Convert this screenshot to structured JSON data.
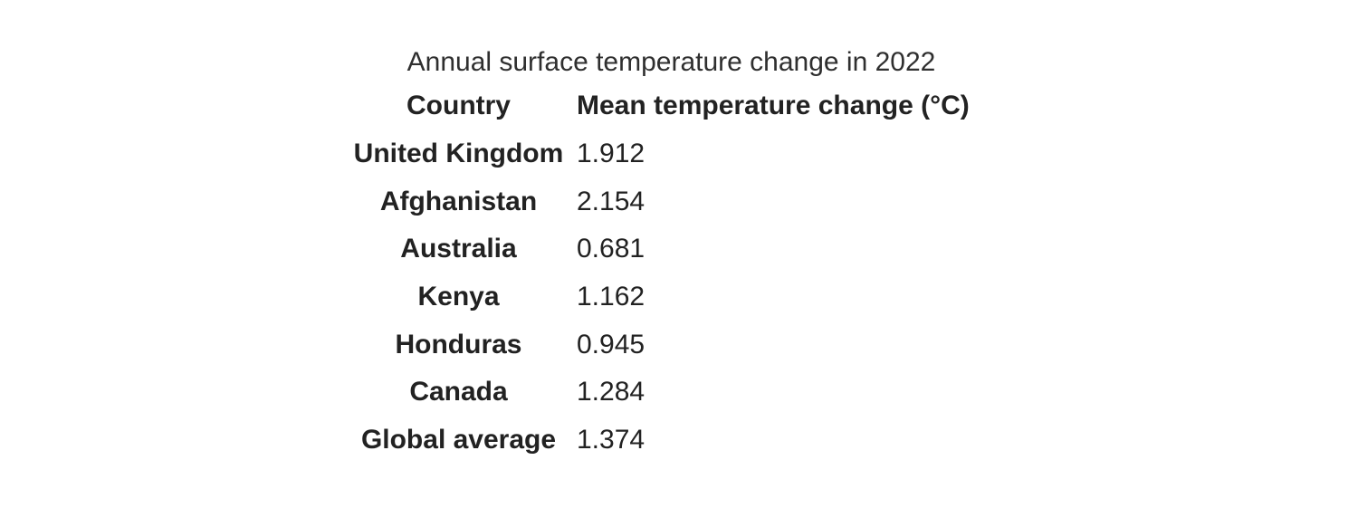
{
  "title": "Annual surface temperature change in 2022",
  "colors": {
    "background": "#ffffff",
    "text": "#222222",
    "title_text": "#2f2f2f"
  },
  "table": {
    "headers": [
      "Country",
      "Mean temperature change (°C)"
    ],
    "rows": [
      {
        "country": "United Kingdom",
        "value": "1.912"
      },
      {
        "country": "Afghanistan",
        "value": "2.154"
      },
      {
        "country": "Australia",
        "value": "0.681"
      },
      {
        "country": "Kenya",
        "value": "1.162"
      },
      {
        "country": "Honduras",
        "value": "0.945"
      },
      {
        "country": "Canada",
        "value": "1.284"
      },
      {
        "country": "Global average",
        "value": "1.374"
      }
    ]
  },
  "chart_data": {
    "type": "table",
    "title": "Annual surface temperature change in 2022",
    "columns": [
      "Country",
      "Mean temperature change (°C)"
    ],
    "rows": [
      [
        "United Kingdom",
        1.912
      ],
      [
        "Afghanistan",
        2.154
      ],
      [
        "Australia",
        0.681
      ],
      [
        "Kenya",
        1.162
      ],
      [
        "Honduras",
        0.945
      ],
      [
        "Canada",
        1.284
      ],
      [
        "Global average",
        1.374
      ]
    ],
    "value_unit": "°C",
    "layout": {
      "title_position": "top-center",
      "country_column_align": "center",
      "value_column_align": "left",
      "grid": false
    }
  }
}
